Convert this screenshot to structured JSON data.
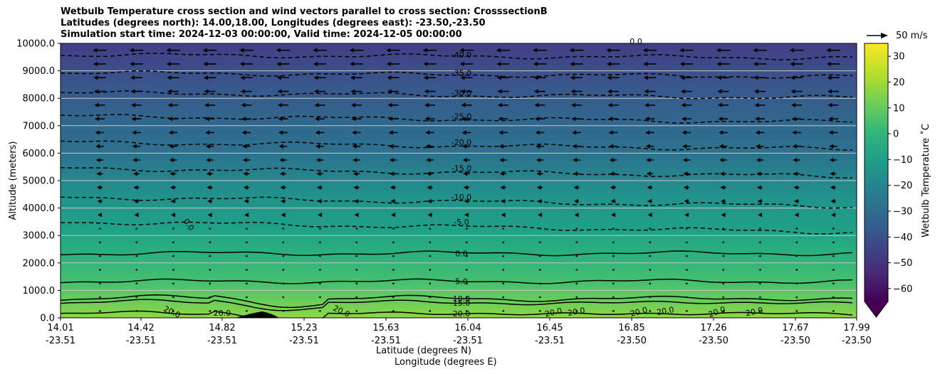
{
  "chart_data": {
    "type": "contourf-cross-section",
    "title_lines": [
      "Wetbulb Temperature cross section and wind vectors parallel to cross section: CrosssectionB",
      "Latitudes (degrees north): 14.00,18.00, Longitudes (degrees east): -23.50,-23.50",
      "Simulation start time: 2024-12-03 00:00:00, Valid time: 2024-12-05 00:00:00"
    ],
    "xlabel_line1": "Latitude (degrees N)",
    "xlabel_line2": "Longitude (degrees E)",
    "ylabel": "Altitude (meters)",
    "ylim": [
      0,
      10000
    ],
    "y_ticks": [
      "0.0",
      "1000.0",
      "2000.0",
      "3000.0",
      "4000.0",
      "5000.0",
      "6000.0",
      "7000.0",
      "8000.0",
      "9000.0",
      "10000.0"
    ],
    "x_ticks": [
      {
        "lat": "14.01",
        "lon": "-23.51"
      },
      {
        "lat": "14.42",
        "lon": "-23.51"
      },
      {
        "lat": "14.82",
        "lon": "-23.51"
      },
      {
        "lat": "15.23",
        "lon": "-23.51"
      },
      {
        "lat": "15.63",
        "lon": "-23.51"
      },
      {
        "lat": "16.04",
        "lon": "-23.51"
      },
      {
        "lat": "16.45",
        "lon": "-23.51"
      },
      {
        "lat": "16.85",
        "lon": "-23.50"
      },
      {
        "lat": "17.26",
        "lon": "-23.50"
      },
      {
        "lat": "17.67",
        "lon": "-23.50"
      },
      {
        "lat": "17.99",
        "lon": "-23.50"
      }
    ],
    "colorbar": {
      "label": "Wetbulb Temperature $^\\circ$C",
      "label_display": "Wetbulb Temperature ˚C",
      "range": [
        -65,
        35
      ],
      "ticks": [
        "30",
        "20",
        "10",
        "0",
        "−10",
        "−20",
        "−30",
        "−40",
        "−50",
        "−60"
      ],
      "extend": "min",
      "colormap": "viridis"
    },
    "quiver_key": "50 m/s",
    "contour_levels": [
      {
        "value": -40,
        "label": "-40.0",
        "altitude_m": 9580
      },
      {
        "value": -35,
        "label": "-35.0",
        "altitude_m": 8930
      },
      {
        "value": -30,
        "label": "-30.0",
        "altitude_m": 8200
      },
      {
        "value": -25,
        "label": "-25.0",
        "altitude_m": 7350
      },
      {
        "value": -20,
        "label": "-20.0",
        "altitude_m": 6400
      },
      {
        "value": -15,
        "label": "-15.0",
        "altitude_m": 5450
      },
      {
        "value": -10,
        "label": "-10.0",
        "altitude_m": 4400
      },
      {
        "value": -5,
        "label": "-5.0",
        "altitude_m": 3500
      },
      {
        "value": 0,
        "label": "0.0",
        "altitude_m": 2350
      },
      {
        "value": 5,
        "label": "5.0",
        "altitude_m": 1330
      },
      {
        "value": 10,
        "label": "10.0",
        "altitude_m": 700
      },
      {
        "value": 15,
        "label": "15.0",
        "altitude_m": 550
      },
      {
        "value": 20,
        "label": "20.0",
        "altitude_m": 150
      }
    ],
    "extra_contour_labels": [
      "0.0",
      "20.0",
      "20.0",
      "20.0",
      "20.0",
      "20.0",
      "20.0",
      "20.0",
      "20.0",
      "20.0",
      "0.0"
    ],
    "wind_direction": "westward (toward lower latitude), stronger aloft"
  }
}
